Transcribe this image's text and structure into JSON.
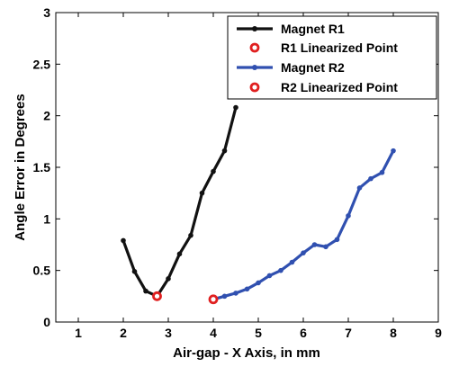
{
  "chart_data": {
    "type": "line",
    "xlabel": "Air-gap - X Axis, in mm",
    "ylabel": "Angle Error in Degrees",
    "xlim": [
      0.5,
      9
    ],
    "ylim": [
      0,
      3
    ],
    "xticks": [
      1,
      2,
      3,
      4,
      5,
      6,
      7,
      8,
      9
    ],
    "yticks": [
      0,
      0.5,
      1,
      1.5,
      2,
      2.5,
      3
    ],
    "xtick_labels": [
      "1",
      "2",
      "3",
      "4",
      "5",
      "6",
      "7",
      "8",
      "9"
    ],
    "ytick_labels": [
      "0",
      "0.5",
      "1",
      "1.5",
      "2",
      "2.5",
      "3"
    ],
    "grid": false,
    "legend_position": "top-right",
    "series": [
      {
        "name": "Magnet R1",
        "color": "#111111",
        "marker": "dot",
        "x": [
          2.0,
          2.25,
          2.5,
          2.75,
          3.0,
          3.25,
          3.5,
          3.75,
          4.0,
          4.25,
          4.5
        ],
        "y": [
          0.79,
          0.49,
          0.3,
          0.25,
          0.42,
          0.66,
          0.84,
          1.25,
          1.46,
          1.66,
          2.08
        ]
      },
      {
        "name": "R1 Linearized Point",
        "color": "#e02020",
        "marker": "ring",
        "x": [
          2.75
        ],
        "y": [
          0.25
        ]
      },
      {
        "name": "Magnet R2",
        "color": "#3050b0",
        "marker": "dot",
        "x": [
          4.0,
          4.25,
          4.5,
          4.75,
          5.0,
          5.25,
          5.5,
          5.75,
          6.0,
          6.25,
          6.5,
          6.75,
          7.0,
          7.25,
          7.5,
          7.75,
          8.0
        ],
        "y": [
          0.22,
          0.25,
          0.28,
          0.32,
          0.38,
          0.45,
          0.5,
          0.58,
          0.67,
          0.75,
          0.73,
          0.8,
          1.03,
          1.3,
          1.39,
          1.45,
          1.66
        ]
      },
      {
        "name": "R2 Linearized Point",
        "color": "#e02020",
        "marker": "ring",
        "x": [
          4.0
        ],
        "y": [
          0.22
        ]
      }
    ]
  }
}
